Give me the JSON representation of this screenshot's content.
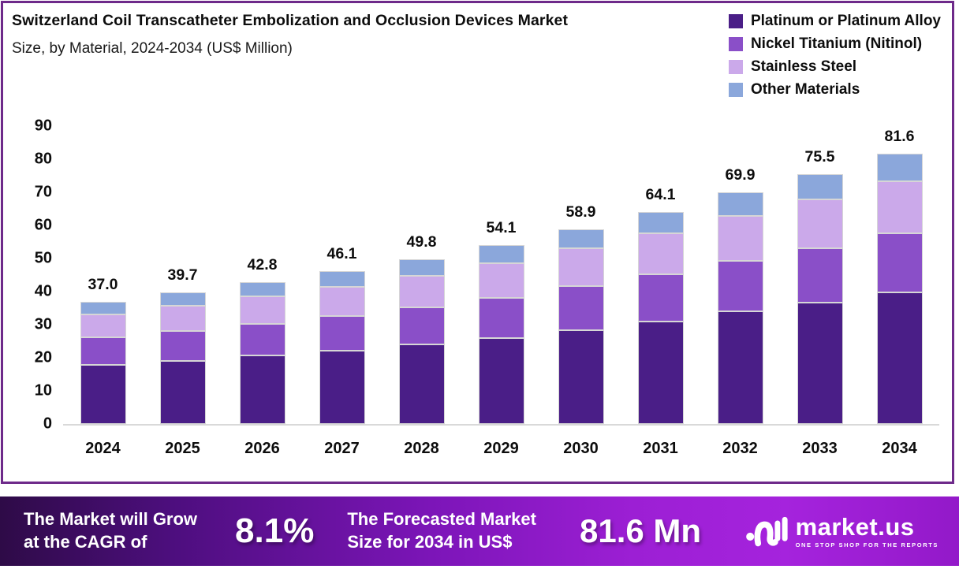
{
  "header": {
    "title": "Switzerland Coil Transcatheter Embolization and Occlusion Devices Market",
    "subtitle": "Size, by Material, 2024-2034 (US$ Million)"
  },
  "colors": {
    "platinum": "#4a1e87",
    "nitinol": "#8a4fc8",
    "stainless": "#cba9ea",
    "other": "#8ba7db",
    "card_border": "#6e2a8a",
    "axis_line": "#d9d9d9"
  },
  "chart_data": {
    "type": "bar",
    "stacked": true,
    "title": "Switzerland Coil Transcatheter Embolization and Occlusion Devices Market Size, by Material, 2024-2034 (US$ Million)",
    "categories": [
      "2024",
      "2025",
      "2026",
      "2027",
      "2028",
      "2029",
      "2030",
      "2031",
      "2032",
      "2033",
      "2034"
    ],
    "series": [
      {
        "name": "Platinum or Platinum Alloy",
        "color": "#4a1e87",
        "values": [
          17.8,
          19.1,
          20.6,
          22.2,
          24.0,
          26.0,
          28.4,
          31.0,
          34.0,
          36.6,
          39.8
        ]
      },
      {
        "name": "Nickel Titanium (Nitinol)",
        "color": "#8a4fc8",
        "values": [
          8.4,
          9.0,
          9.7,
          10.4,
          11.2,
          12.2,
          13.2,
          14.2,
          15.3,
          16.6,
          17.8
        ]
      },
      {
        "name": "Stainless Steel",
        "color": "#cba9ea",
        "values": [
          7.0,
          7.6,
          8.2,
          8.8,
          9.5,
          10.4,
          11.4,
          12.4,
          13.5,
          14.6,
          15.7
        ]
      },
      {
        "name": "Other Materials",
        "color": "#8ba7db",
        "values": [
          3.8,
          4.0,
          4.3,
          4.7,
          5.1,
          5.5,
          5.9,
          6.5,
          7.1,
          7.7,
          8.3
        ]
      }
    ],
    "totals": [
      37.0,
      39.7,
      42.8,
      46.1,
      49.8,
      54.1,
      58.9,
      64.1,
      69.9,
      75.5,
      81.6
    ],
    "y_ticks": [
      0,
      10,
      20,
      30,
      40,
      50,
      60,
      70,
      80,
      90
    ],
    "ylim": [
      0,
      90
    ],
    "xlabel": "",
    "ylabel": "US$ Million",
    "grid": false,
    "legend_position": "top-right"
  },
  "legend": [
    {
      "label": "Platinum or Platinum Alloy",
      "color": "#4a1e87"
    },
    {
      "label": "Nickel Titanium (Nitinol)",
      "color": "#8a4fc8"
    },
    {
      "label": "Stainless Steel",
      "color": "#cba9ea"
    },
    {
      "label": "Other Materials",
      "color": "#8ba7db"
    }
  ],
  "banner": {
    "cagr_line1": "The Market will Grow",
    "cagr_line2": "at the CAGR of",
    "cagr_value": "8.1%",
    "forecast_line1": "The Forecasted Market",
    "forecast_line2": "Size for 2034 in US$",
    "forecast_value": "81.6 Mn",
    "logo_name": "market.us",
    "logo_tagline": "ONE STOP SHOP FOR THE REPORTS"
  }
}
